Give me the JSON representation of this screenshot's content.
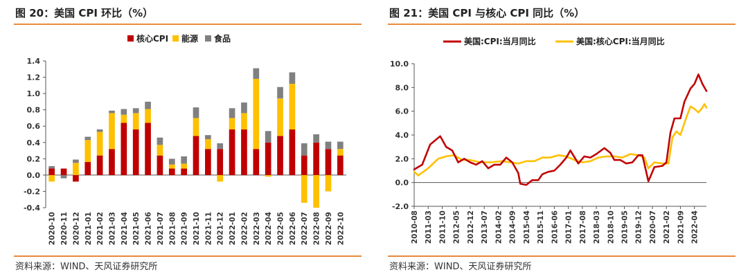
{
  "left_panel": {
    "title": "图 20：美国 CPI 环比（%）",
    "source": "资料来源：WIND、天风证券研究所"
  },
  "right_panel": {
    "title": "图 21：美国 CPI 与核心 CPI 同比（%）",
    "source": "资料来源：WIND、天风证券研究所"
  },
  "colors": {
    "rule": "#e8893a",
    "core": "#c00000",
    "energy": "#ffc000",
    "food": "#808080"
  },
  "chart_data": [
    {
      "type": "bar",
      "stacked": true,
      "categories": [
        "2020-10",
        "2020-11",
        "2020-12",
        "2021-01",
        "2021-02",
        "2021-03",
        "2021-04",
        "2021-05",
        "2021-06",
        "2021-07",
        "2021-08",
        "2021-09",
        "2021-10",
        "2021-11",
        "2021-12",
        "2022-01",
        "2022-02",
        "2022-03",
        "2022-04",
        "2022-05",
        "2022-06",
        "2022-07",
        "2022-08",
        "2022-09",
        "2022-10"
      ],
      "series": [
        {
          "name": "核心CPI",
          "color": "#c00000",
          "values": [
            0.08,
            0.08,
            -0.08,
            0.16,
            0.24,
            0.32,
            0.64,
            0.56,
            0.64,
            0.24,
            0.08,
            0.08,
            0.48,
            0.32,
            0.32,
            0.56,
            0.56,
            0.32,
            0.4,
            0.48,
            0.56,
            0.24,
            0.4,
            0.32,
            0.24
          ]
        },
        {
          "name": "能源",
          "color": "#ffc000",
          "values": [
            -0.08,
            0.0,
            0.15,
            0.27,
            0.29,
            0.44,
            0.1,
            0.2,
            0.17,
            0.13,
            0.05,
            0.06,
            0.22,
            0.12,
            -0.08,
            0.14,
            0.2,
            0.86,
            -0.02,
            0.46,
            0.56,
            -0.34,
            -0.4,
            -0.2,
            0.08
          ]
        },
        {
          "name": "食品",
          "color": "#808080",
          "values": [
            0.03,
            -0.04,
            0.04,
            0.04,
            0.03,
            0.03,
            0.07,
            0.06,
            0.09,
            0.09,
            0.07,
            0.09,
            0.13,
            0.05,
            0.07,
            0.12,
            0.13,
            0.13,
            0.14,
            0.14,
            0.14,
            0.15,
            0.1,
            0.09,
            0.09
          ]
        }
      ],
      "ylim": [
        -0.4,
        1.4
      ],
      "yticks": [
        -0.4,
        -0.2,
        0.0,
        0.2,
        0.4,
        0.6,
        0.8,
        1.0,
        1.2,
        1.4
      ],
      "legend": "top-center",
      "grid": false
    },
    {
      "type": "line",
      "x_start": "2010-08",
      "x_end": "2022-10",
      "xticks": [
        "2010-08",
        "2011-03",
        "2011-10",
        "2012-05",
        "2012-12",
        "2013-07",
        "2014-02",
        "2014-09",
        "2015-04",
        "2015-11",
        "2016-06",
        "2017-01",
        "2017-08",
        "2018-03",
        "2018-10",
        "2019-05",
        "2019-12",
        "2020-07",
        "2021-02",
        "2021-09",
        "2022-04"
      ],
      "ylim": [
        -2.0,
        10.0
      ],
      "yticks": [
        -2.0,
        0.0,
        2.0,
        4.0,
        6.0,
        8.0,
        10.0
      ],
      "legend": "top-center",
      "grid": false,
      "series": [
        {
          "name": "美国:CPI:当月同比",
          "color": "#c00000",
          "points": [
            [
              "2010-08",
              1.1
            ],
            [
              "2010-12",
              1.5
            ],
            [
              "2011-04",
              3.2
            ],
            [
              "2011-09",
              3.9
            ],
            [
              "2011-12",
              3.0
            ],
            [
              "2012-03",
              2.7
            ],
            [
              "2012-06",
              1.7
            ],
            [
              "2012-09",
              2.0
            ],
            [
              "2012-12",
              1.7
            ],
            [
              "2013-03",
              1.5
            ],
            [
              "2013-06",
              1.8
            ],
            [
              "2013-09",
              1.2
            ],
            [
              "2013-12",
              1.5
            ],
            [
              "2014-03",
              1.5
            ],
            [
              "2014-06",
              2.1
            ],
            [
              "2014-09",
              1.7
            ],
            [
              "2014-12",
              0.8
            ],
            [
              "2015-01",
              -0.1
            ],
            [
              "2015-04",
              -0.2
            ],
            [
              "2015-07",
              0.2
            ],
            [
              "2015-10",
              0.2
            ],
            [
              "2015-12",
              0.7
            ],
            [
              "2016-03",
              0.9
            ],
            [
              "2016-06",
              1.0
            ],
            [
              "2016-09",
              1.5
            ],
            [
              "2016-12",
              2.1
            ],
            [
              "2017-02",
              2.7
            ],
            [
              "2017-06",
              1.6
            ],
            [
              "2017-09",
              2.2
            ],
            [
              "2017-12",
              2.1
            ],
            [
              "2018-03",
              2.4
            ],
            [
              "2018-07",
              2.9
            ],
            [
              "2018-10",
              2.5
            ],
            [
              "2018-12",
              1.9
            ],
            [
              "2019-03",
              1.9
            ],
            [
              "2019-06",
              1.6
            ],
            [
              "2019-09",
              1.7
            ],
            [
              "2019-12",
              2.3
            ],
            [
              "2020-02",
              2.3
            ],
            [
              "2020-05",
              0.1
            ],
            [
              "2020-08",
              1.3
            ],
            [
              "2020-12",
              1.4
            ],
            [
              "2021-02",
              1.7
            ],
            [
              "2021-04",
              4.2
            ],
            [
              "2021-06",
              5.4
            ],
            [
              "2021-09",
              5.4
            ],
            [
              "2021-11",
              6.8
            ],
            [
              "2022-02",
              7.9
            ],
            [
              "2022-04",
              8.3
            ],
            [
              "2022-06",
              9.1
            ],
            [
              "2022-08",
              8.3
            ],
            [
              "2022-10",
              7.7
            ]
          ]
        },
        {
          "name": "美国:核心CPI:当月同比",
          "color": "#ffc000",
          "points": [
            [
              "2010-08",
              0.9
            ],
            [
              "2010-10",
              0.6
            ],
            [
              "2011-03",
              1.2
            ],
            [
              "2011-08",
              2.0
            ],
            [
              "2011-12",
              2.2
            ],
            [
              "2012-04",
              2.3
            ],
            [
              "2012-08",
              1.9
            ],
            [
              "2012-12",
              1.9
            ],
            [
              "2013-05",
              1.7
            ],
            [
              "2013-10",
              1.7
            ],
            [
              "2014-04",
              1.8
            ],
            [
              "2014-08",
              1.7
            ],
            [
              "2014-12",
              1.6
            ],
            [
              "2015-04",
              1.8
            ],
            [
              "2015-08",
              1.8
            ],
            [
              "2015-12",
              2.1
            ],
            [
              "2016-04",
              2.1
            ],
            [
              "2016-08",
              2.3
            ],
            [
              "2016-12",
              2.2
            ],
            [
              "2017-04",
              1.9
            ],
            [
              "2017-08",
              1.7
            ],
            [
              "2017-12",
              1.8
            ],
            [
              "2018-04",
              2.1
            ],
            [
              "2018-08",
              2.2
            ],
            [
              "2018-12",
              2.2
            ],
            [
              "2019-04",
              2.1
            ],
            [
              "2019-08",
              2.4
            ],
            [
              "2019-12",
              2.3
            ],
            [
              "2020-03",
              2.1
            ],
            [
              "2020-05",
              1.2
            ],
            [
              "2020-08",
              1.7
            ],
            [
              "2020-12",
              1.6
            ],
            [
              "2021-03",
              1.6
            ],
            [
              "2021-05",
              3.8
            ],
            [
              "2021-07",
              4.3
            ],
            [
              "2021-09",
              4.0
            ],
            [
              "2021-12",
              5.5
            ],
            [
              "2022-02",
              6.4
            ],
            [
              "2022-04",
              6.2
            ],
            [
              "2022-06",
              5.9
            ],
            [
              "2022-08",
              6.3
            ],
            [
              "2022-09",
              6.6
            ],
            [
              "2022-10",
              6.3
            ]
          ]
        }
      ]
    }
  ]
}
